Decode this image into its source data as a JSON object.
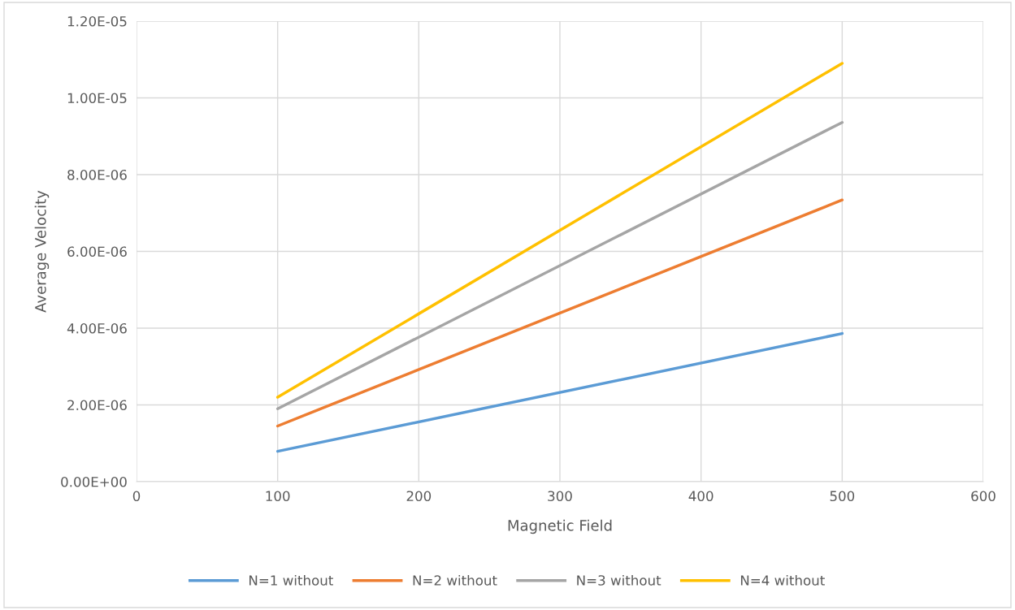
{
  "chart_data": {
    "type": "line",
    "xlabel": "Magnetic Field",
    "ylabel": "Average Velocity",
    "x": [
      100,
      500
    ],
    "series": [
      {
        "name": "N=1 without",
        "color": "#5b9bd5",
        "values": [
          7.9e-07,
          3.86e-06
        ]
      },
      {
        "name": "N=2 without",
        "color": "#ed7d31",
        "values": [
          1.45e-06,
          7.34e-06
        ]
      },
      {
        "name": "N=3 without",
        "color": "#a5a5a5",
        "values": [
          1.9e-06,
          9.36e-06
        ]
      },
      {
        "name": "N=4 without",
        "color": "#ffc000",
        "values": [
          2.2e-06,
          1.09e-05
        ]
      }
    ],
    "xlim": [
      0,
      600
    ],
    "xticks": [
      0,
      100,
      200,
      300,
      400,
      500,
      600
    ],
    "ylim": [
      0,
      1.2e-05
    ],
    "yticks": [
      {
        "value": 0,
        "label": "0.00E+00"
      },
      {
        "value": 2e-06,
        "label": "2.00E-06"
      },
      {
        "value": 4e-06,
        "label": "4.00E-06"
      },
      {
        "value": 6e-06,
        "label": "6.00E-06"
      },
      {
        "value": 8e-06,
        "label": "8.00E-06"
      },
      {
        "value": 1e-05,
        "label": "1.00E-05"
      },
      {
        "value": 1.2e-05,
        "label": "1.20E-05"
      }
    ],
    "grid": true,
    "legend": "bottom",
    "marker": "none",
    "line_style": "solid"
  }
}
